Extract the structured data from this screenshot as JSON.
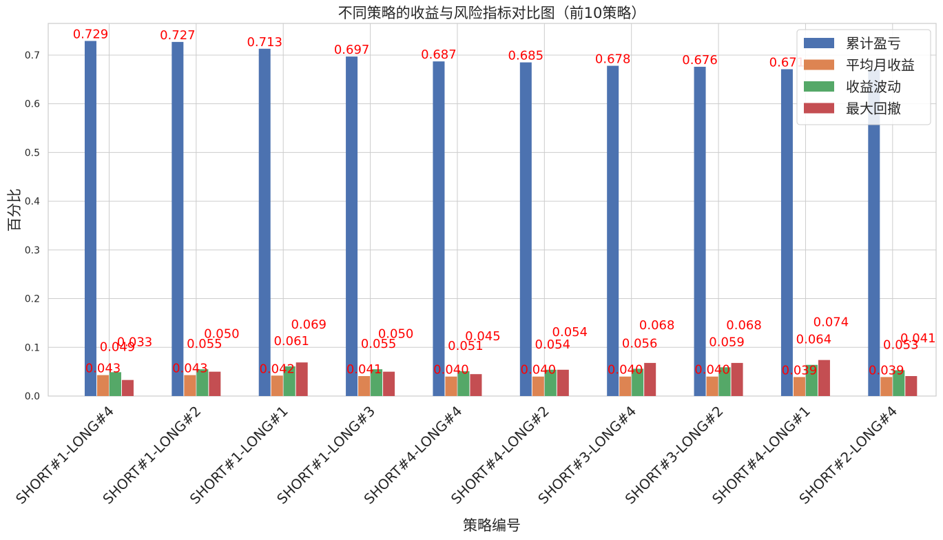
{
  "chart_data": {
    "type": "bar",
    "title": "不同策略的收益与风险指标对比图（前10策略）",
    "xlabel": "策略编号",
    "ylabel": "百分比",
    "ylim": [
      0,
      0.765
    ],
    "yticks": [
      "0.0",
      "0.1",
      "0.2",
      "0.3",
      "0.4",
      "0.5",
      "0.6",
      "0.7"
    ],
    "grid": true,
    "legend_position": "top-right",
    "categories": [
      "SHORT#1-LONG#4",
      "SHORT#1-LONG#2",
      "SHORT#1-LONG#1",
      "SHORT#1-LONG#3",
      "SHORT#4-LONG#4",
      "SHORT#4-LONG#2",
      "SHORT#3-LONG#4",
      "SHORT#3-LONG#2",
      "SHORT#4-LONG#1",
      "SHORT#2-LONG#4"
    ],
    "series": [
      {
        "name": "累计盈亏",
        "color": "#4c72b0",
        "values": [
          0.729,
          0.727,
          0.713,
          0.697,
          0.687,
          0.685,
          0.678,
          0.676,
          0.671,
          0.67
        ],
        "labels": [
          "0.729",
          "0.727",
          "0.713",
          "0.697",
          "0.687",
          "0.685",
          "0.678",
          "0.676",
          "0.671",
          ""
        ]
      },
      {
        "name": "平均月收益",
        "color": "#dd8452",
        "values": [
          0.043,
          0.043,
          0.042,
          0.041,
          0.04,
          0.04,
          0.04,
          0.04,
          0.039,
          0.039
        ],
        "labels": [
          "0.043",
          "0.043",
          "0.042",
          "0.041",
          "0.040",
          "0.040",
          "0.040",
          "0.040",
          "0.039",
          "0.039"
        ]
      },
      {
        "name": "收益波动",
        "color": "#55a868",
        "values": [
          0.049,
          0.055,
          0.061,
          0.055,
          0.051,
          0.054,
          0.056,
          0.059,
          0.064,
          0.053
        ],
        "labels": [
          "0.049",
          "0.055",
          "0.061",
          "0.055",
          "0.051",
          "0.054",
          "0.056",
          "0.059",
          "0.064",
          "0.053"
        ]
      },
      {
        "name": "最大回撤",
        "color": "#c44e52",
        "values": [
          0.033,
          0.05,
          0.069,
          0.05,
          0.045,
          0.054,
          0.068,
          0.068,
          0.074,
          0.041
        ],
        "labels": [
          "0.033",
          "0.050",
          "0.069",
          "0.050",
          "0.045",
          "0.054",
          "0.068",
          "0.068",
          "0.074",
          "0.041"
        ]
      }
    ]
  }
}
